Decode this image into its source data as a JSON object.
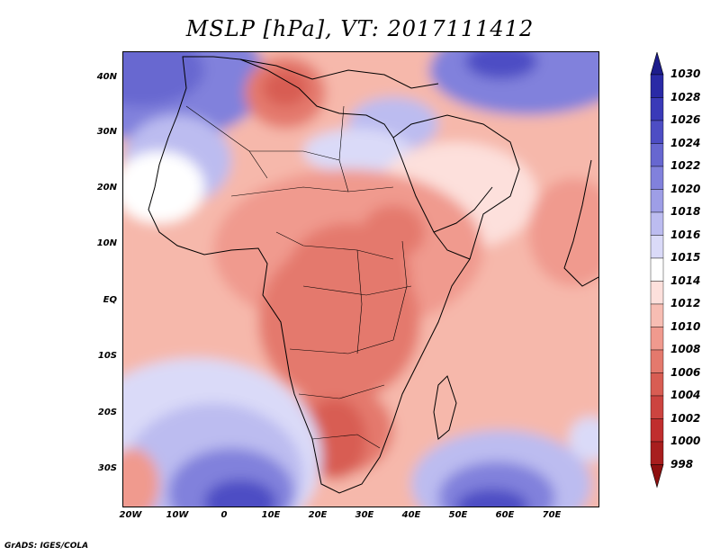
{
  "title": "MSLP [hPa], VT: 2017111412",
  "credit": "GrADS: IGES/COLA",
  "lat_labels": [
    "40N",
    "30N",
    "20N",
    "10N",
    "EQ",
    "10S",
    "20S",
    "30S"
  ],
  "lon_labels": [
    "20W",
    "10W",
    "0",
    "10E",
    "20E",
    "30E",
    "40E",
    "50E",
    "60E",
    "70E"
  ],
  "colorbar": {
    "levels": [
      "1030",
      "1028",
      "1026",
      "1024",
      "1022",
      "1020",
      "1018",
      "1016",
      "1015",
      "1014",
      "1012",
      "1010",
      "1008",
      "1006",
      "1004",
      "1002",
      "1000",
      "998"
    ],
    "colors": [
      "#1d1d8c",
      "#2a2aa6",
      "#3a3ab8",
      "#4d4dc4",
      "#6767d0",
      "#8181dc",
      "#9e9ee6",
      "#bcbcf0",
      "#dadaf8",
      "#ffffff",
      "#fde0dc",
      "#f7bdb3",
      "#f09a8e",
      "#e4796d",
      "#d85d53",
      "#cc4440",
      "#c02e2e",
      "#a81e1e",
      "#8e1010"
    ]
  },
  "map": {
    "background_color": "#f6b8ab",
    "coastline_color": "#000000"
  }
}
